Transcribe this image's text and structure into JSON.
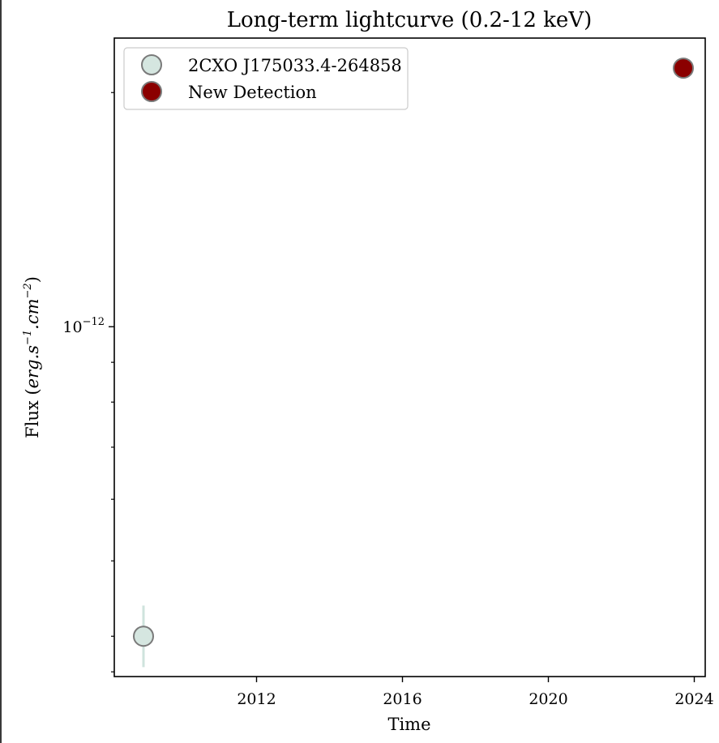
{
  "chart_data": {
    "type": "scatter",
    "title": "Long-term lightcurve (0.2-12 keV)",
    "xlabel": "Time",
    "ylabel": {
      "prefix": "Flux (",
      "unit_base1": "erg.s",
      "unit_exp1": "−1",
      "unit_base2": ".cm",
      "unit_exp2": "−2",
      "suffix": ")"
    },
    "y_scale": "log",
    "xlim": [
      2008.1,
      2024.3
    ],
    "ylim": [
      3.55e-13,
      2.35e-12
    ],
    "x_ticks": [
      {
        "value": 2012,
        "label": "2012"
      },
      {
        "value": 2016,
        "label": "2016"
      },
      {
        "value": 2020,
        "label": "2020"
      },
      {
        "value": 2024,
        "label": "2024"
      }
    ],
    "y_major_ticks": [
      {
        "value": 1e-12,
        "base": "10",
        "exp": "−12"
      }
    ],
    "y_minor_ticks": [
      3.6e-13,
      4e-13,
      5e-13,
      6e-13,
      7e-13,
      8e-13,
      9e-13,
      2e-12,
      3e-12
    ],
    "legend_position": "upper-left",
    "grid": false,
    "series": [
      {
        "name": "2CXO J175033.4-264858",
        "color": "#d5e6e0",
        "edge_color": "#7a7a7a",
        "errorbar_color": "#cfe3dd",
        "points": [
          {
            "x": 2008.9,
            "y": 4e-13,
            "y_lo": 3.65e-13,
            "y_hi": 4.38e-13
          }
        ]
      },
      {
        "name": "New Detection",
        "color": "#8b0000",
        "edge_color": "#7a7a7a",
        "points": [
          {
            "x": 2023.7,
            "y": 2.15e-12
          }
        ]
      }
    ]
  }
}
